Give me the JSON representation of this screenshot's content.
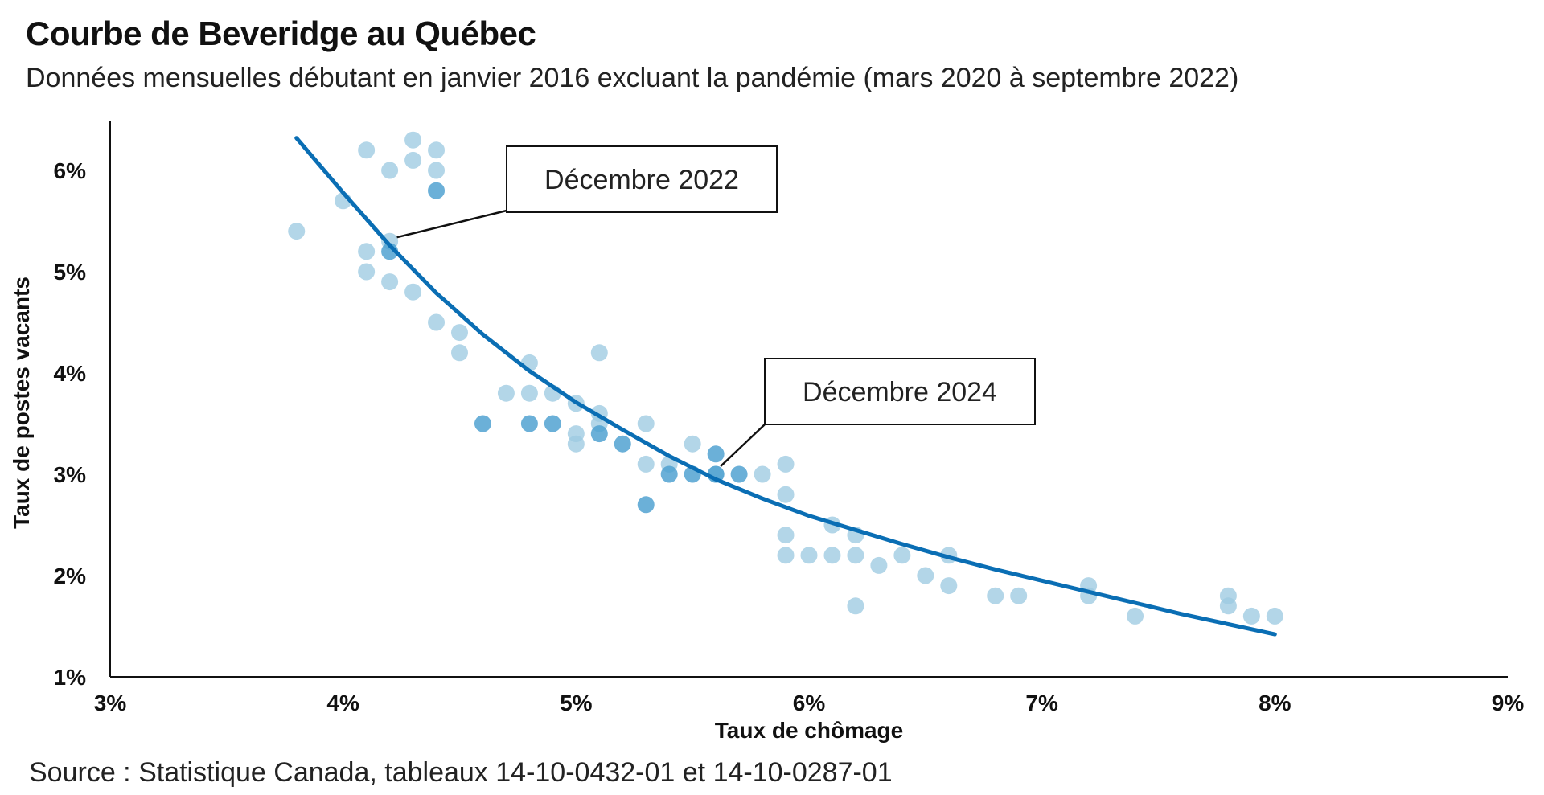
{
  "title": "Courbe de Beveridge au Québec",
  "subtitle": "Données mensuelles débutant en janvier 2016 excluant la pandémie (mars 2020 à septembre 2022)",
  "source": "Source : Statistique Canada, tableaux 14-10-0432-01 et 14-10-0287-01",
  "colors": {
    "point_light": "#9ecae1",
    "point_dark": "#4a9fd0",
    "curve": "#0a6eb4",
    "axis": "#111111"
  },
  "chart_data": {
    "type": "scatter",
    "xlabel": "Taux de chômage",
    "ylabel": "Taux de postes vacants",
    "xlim": [
      3,
      9
    ],
    "ylim": [
      1,
      6.5
    ],
    "x_ticks": [
      {
        "value": 3,
        "label": "3%"
      },
      {
        "value": 4,
        "label": "4%"
      },
      {
        "value": 5,
        "label": "5%"
      },
      {
        "value": 6,
        "label": "6%"
      },
      {
        "value": 7,
        "label": "7%"
      },
      {
        "value": 8,
        "label": "8%"
      },
      {
        "value": 9,
        "label": "9%"
      }
    ],
    "y_ticks": [
      {
        "value": 1,
        "label": "1%"
      },
      {
        "value": 2,
        "label": "2%"
      },
      {
        "value": 3,
        "label": "3%"
      },
      {
        "value": 4,
        "label": "4%"
      },
      {
        "value": 5,
        "label": "5%"
      },
      {
        "value": 6,
        "label": "6%"
      }
    ],
    "grid": false,
    "points_before": [
      {
        "x": 3.8,
        "y": 5.4
      },
      {
        "x": 4.0,
        "y": 5.7
      },
      {
        "x": 4.1,
        "y": 6.2
      },
      {
        "x": 4.2,
        "y": 6.0
      },
      {
        "x": 4.3,
        "y": 6.3
      },
      {
        "x": 4.3,
        "y": 6.1
      },
      {
        "x": 4.4,
        "y": 6.2
      },
      {
        "x": 4.4,
        "y": 6.0
      },
      {
        "x": 4.1,
        "y": 5.2
      },
      {
        "x": 4.2,
        "y": 5.3
      },
      {
        "x": 4.1,
        "y": 5.0
      },
      {
        "x": 4.2,
        "y": 4.9
      },
      {
        "x": 4.3,
        "y": 4.8
      },
      {
        "x": 4.4,
        "y": 4.5
      },
      {
        "x": 4.5,
        "y": 4.4
      },
      {
        "x": 4.5,
        "y": 4.2
      },
      {
        "x": 4.7,
        "y": 3.8
      },
      {
        "x": 4.8,
        "y": 4.1
      },
      {
        "x": 4.8,
        "y": 3.8
      },
      {
        "x": 4.9,
        "y": 3.8
      },
      {
        "x": 5.0,
        "y": 3.7
      },
      {
        "x": 5.0,
        "y": 3.4
      },
      {
        "x": 5.0,
        "y": 3.3
      },
      {
        "x": 5.1,
        "y": 4.2
      },
      {
        "x": 5.1,
        "y": 3.6
      },
      {
        "x": 5.1,
        "y": 3.5
      },
      {
        "x": 5.3,
        "y": 3.5
      },
      {
        "x": 5.3,
        "y": 3.1
      },
      {
        "x": 5.4,
        "y": 3.1
      },
      {
        "x": 5.5,
        "y": 3.3
      },
      {
        "x": 5.6,
        "y": 3.0
      },
      {
        "x": 5.8,
        "y": 3.0
      },
      {
        "x": 5.9,
        "y": 3.1
      },
      {
        "x": 5.9,
        "y": 2.8
      },
      {
        "x": 5.9,
        "y": 2.4
      },
      {
        "x": 5.9,
        "y": 2.2
      },
      {
        "x": 6.0,
        "y": 2.2
      },
      {
        "x": 6.1,
        "y": 2.5
      },
      {
        "x": 6.1,
        "y": 2.2
      },
      {
        "x": 6.2,
        "y": 2.4
      },
      {
        "x": 6.2,
        "y": 2.2
      },
      {
        "x": 6.2,
        "y": 1.7
      },
      {
        "x": 6.3,
        "y": 2.1
      },
      {
        "x": 6.4,
        "y": 2.2
      },
      {
        "x": 6.5,
        "y": 2.0
      },
      {
        "x": 6.6,
        "y": 2.2
      },
      {
        "x": 6.6,
        "y": 1.9
      },
      {
        "x": 6.8,
        "y": 1.8
      },
      {
        "x": 6.9,
        "y": 1.8
      },
      {
        "x": 7.2,
        "y": 1.9
      },
      {
        "x": 7.2,
        "y": 1.8
      },
      {
        "x": 7.4,
        "y": 1.6
      },
      {
        "x": 7.8,
        "y": 1.8
      },
      {
        "x": 7.8,
        "y": 1.7
      },
      {
        "x": 7.9,
        "y": 1.6
      },
      {
        "x": 8.0,
        "y": 1.6
      }
    ],
    "points_after": [
      {
        "x": 4.4,
        "y": 5.8
      },
      {
        "x": 4.2,
        "y": 5.2
      },
      {
        "x": 4.6,
        "y": 3.5
      },
      {
        "x": 4.8,
        "y": 3.5
      },
      {
        "x": 4.9,
        "y": 3.5
      },
      {
        "x": 5.1,
        "y": 3.4
      },
      {
        "x": 5.2,
        "y": 3.3
      },
      {
        "x": 5.4,
        "y": 3.0
      },
      {
        "x": 5.5,
        "y": 3.0
      },
      {
        "x": 5.6,
        "y": 3.2
      },
      {
        "x": 5.6,
        "y": 3.0
      },
      {
        "x": 5.7,
        "y": 3.0
      },
      {
        "x": 5.3,
        "y": 2.7
      }
    ],
    "trend_curve": [
      {
        "x": 3.8,
        "y": 6.32
      },
      {
        "x": 4.0,
        "y": 5.78
      },
      {
        "x": 4.2,
        "y": 5.26
      },
      {
        "x": 4.4,
        "y": 4.79
      },
      {
        "x": 4.6,
        "y": 4.38
      },
      {
        "x": 4.8,
        "y": 4.02
      },
      {
        "x": 5.0,
        "y": 3.71
      },
      {
        "x": 5.2,
        "y": 3.44
      },
      {
        "x": 5.4,
        "y": 3.18
      },
      {
        "x": 5.6,
        "y": 2.95
      },
      {
        "x": 5.8,
        "y": 2.76
      },
      {
        "x": 6.0,
        "y": 2.59
      },
      {
        "x": 6.2,
        "y": 2.45
      },
      {
        "x": 6.4,
        "y": 2.31
      },
      {
        "x": 6.6,
        "y": 2.18
      },
      {
        "x": 6.8,
        "y": 2.06
      },
      {
        "x": 7.0,
        "y": 1.95
      },
      {
        "x": 7.2,
        "y": 1.84
      },
      {
        "x": 7.4,
        "y": 1.73
      },
      {
        "x": 7.6,
        "y": 1.62
      },
      {
        "x": 7.8,
        "y": 1.52
      },
      {
        "x": 8.0,
        "y": 1.42
      }
    ],
    "annotations": [
      {
        "text": "Décembre 2022",
        "x": 4.2,
        "y": 5.3
      },
      {
        "text": "Décembre 2024",
        "x": 5.6,
        "y": 3.0
      }
    ]
  }
}
